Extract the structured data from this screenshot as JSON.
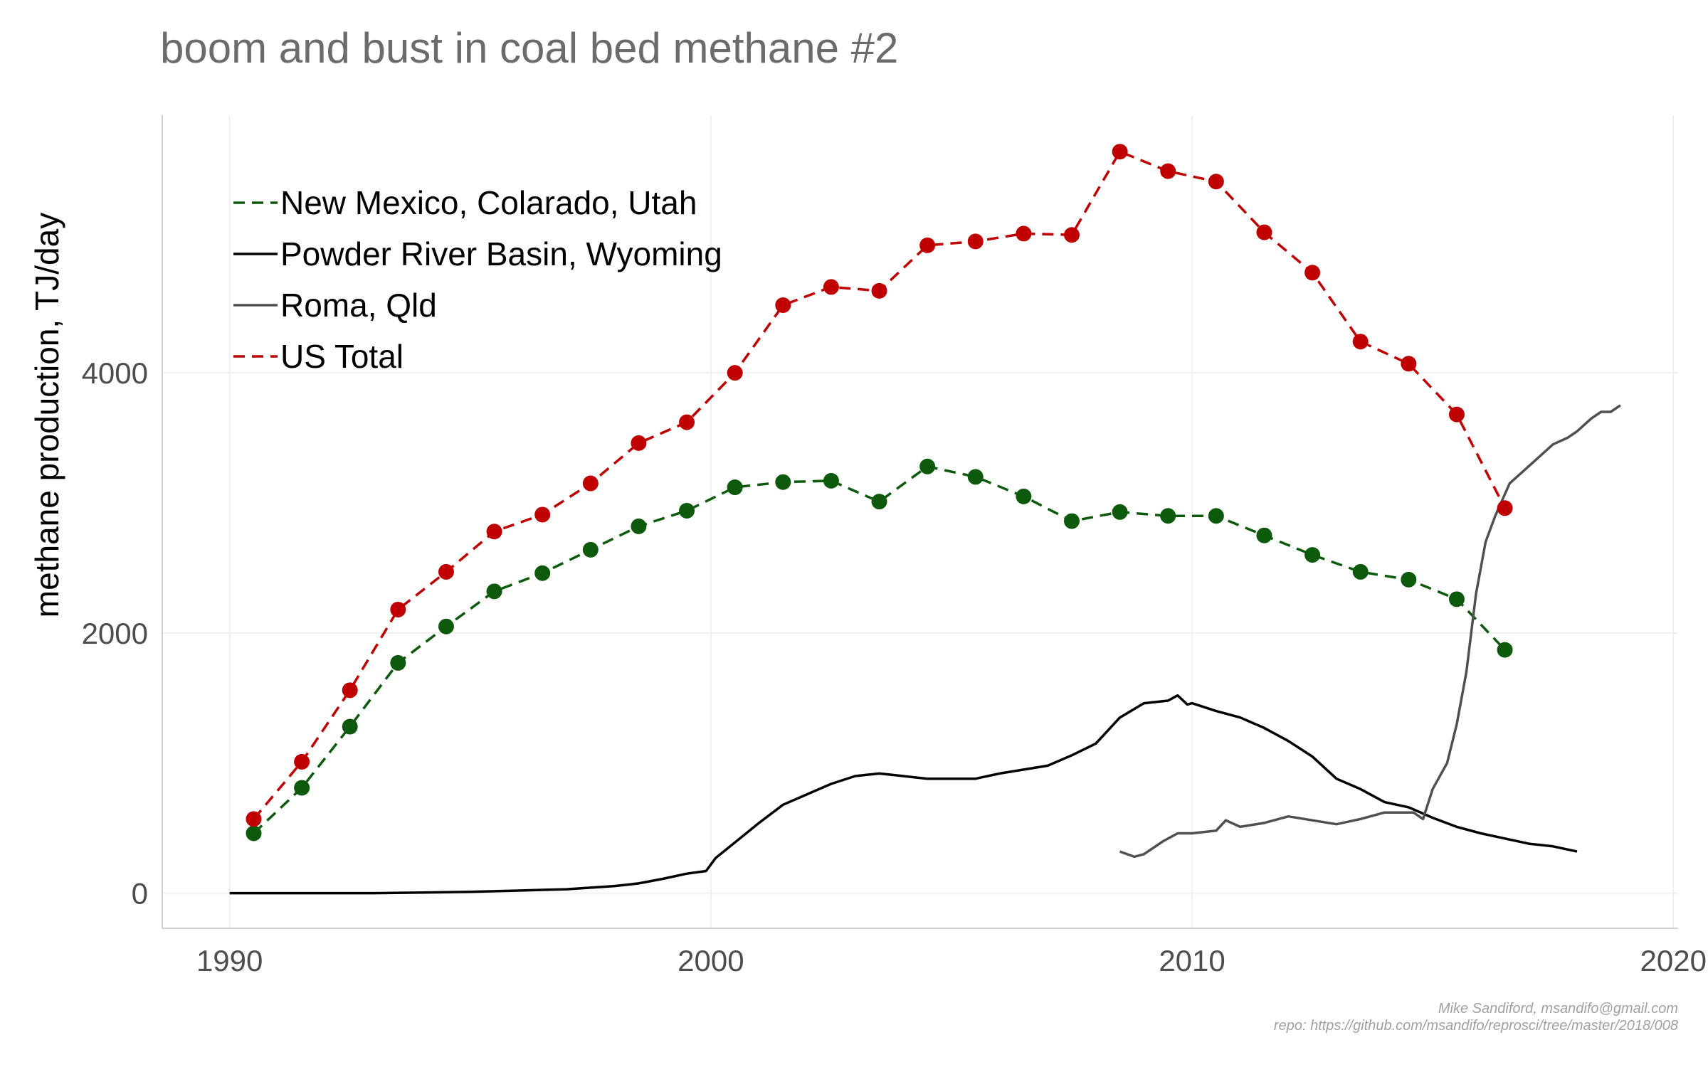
{
  "title": "boom and bust in coal bed methane #2",
  "caption": {
    "line1": "Mike Sandiford, msandifo@gmail.com",
    "line2": "repo: https://github.com/msandifo/reprosci/tree/master/2018/008"
  },
  "chart_data": {
    "type": "line",
    "title": "boom and bust in coal bed methane #2",
    "xlabel": "",
    "ylabel": "methane production, TJ/day",
    "xlim": [
      1988.6,
      2020.1
    ],
    "ylim": [
      -270,
      5980
    ],
    "x_ticks": [
      1990,
      2000,
      2010,
      2020
    ],
    "y_ticks": [
      0,
      2000,
      4000
    ],
    "grid": true,
    "legend_position": "top-left",
    "series": [
      {
        "name": "New Mexico, Colarado, Utah",
        "color": "#0d5a0d",
        "dash": "dashed",
        "markers": true,
        "x": [
          1990.5,
          1991.5,
          1992.5,
          1993.5,
          1994.5,
          1995.5,
          1996.5,
          1997.5,
          1998.5,
          1999.5,
          2000.5,
          2001.5,
          2002.5,
          2003.5,
          2004.5,
          2005.5,
          2006.5,
          2007.5,
          2008.5,
          2009.5,
          2010.5,
          2011.5,
          2012.5,
          2013.5,
          2014.5,
          2015.5,
          2016.5
        ],
        "y": [
          460,
          810,
          1280,
          1770,
          2050,
          2320,
          2460,
          2640,
          2820,
          2940,
          3120,
          3160,
          3170,
          3010,
          3280,
          3200,
          3050,
          2860,
          2930,
          2900,
          2900,
          2750,
          2600,
          2470,
          2410,
          2260,
          1870
        ]
      },
      {
        "name": "Powder River Basin, Wyoming",
        "color": "#000000",
        "dash": "solid",
        "markers": false,
        "x": [
          1990,
          1991,
          1992,
          1993,
          1994,
          1995,
          1996,
          1997,
          1998,
          1998.5,
          1999,
          1999.5,
          1999.9,
          2000.1,
          2000.5,
          2001,
          2001.5,
          2002,
          2002.5,
          2003,
          2003.5,
          2004,
          2004.5,
          2005,
          2005.5,
          2006,
          2006.5,
          2007,
          2007.5,
          2008,
          2008.5,
          2009,
          2009.5,
          2009.7,
          2009.9,
          2010,
          2010.5,
          2011,
          2011.5,
          2012,
          2012.5,
          2013,
          2013.5,
          2014,
          2014.5,
          2015,
          2015.5,
          2016,
          2016.5,
          2017,
          2017.5,
          2018
        ],
        "y": [
          0,
          0,
          0,
          0,
          5,
          10,
          20,
          30,
          55,
          75,
          110,
          150,
          170,
          270,
          390,
          540,
          680,
          760,
          840,
          900,
          920,
          900,
          880,
          880,
          880,
          920,
          950,
          980,
          1060,
          1150,
          1350,
          1460,
          1480,
          1520,
          1450,
          1460,
          1400,
          1350,
          1270,
          1170,
          1050,
          880,
          800,
          700,
          660,
          580,
          510,
          460,
          420,
          380,
          360,
          320
        ]
      },
      {
        "name": "Roma, Qld",
        "color": "#505050",
        "dash": "solid",
        "markers": false,
        "x": [
          2008.5,
          2008.8,
          2009,
          2009.4,
          2009.7,
          2010,
          2010.5,
          2010.7,
          2011,
          2011.5,
          2012,
          2012.5,
          2013,
          2013.5,
          2014,
          2014.4,
          2014.6,
          2014.8,
          2015,
          2015.3,
          2015.5,
          2015.7,
          2015.9,
          2016.1,
          2016.3,
          2016.6,
          2016.9,
          2017.2,
          2017.5,
          2017.8,
          2018,
          2018.3,
          2018.5,
          2018.7,
          2018.9
        ],
        "y": [
          320,
          280,
          300,
          400,
          460,
          460,
          480,
          560,
          510,
          540,
          590,
          560,
          530,
          570,
          620,
          620,
          620,
          570,
          800,
          1000,
          1300,
          1700,
          2300,
          2700,
          2900,
          3150,
          3250,
          3350,
          3450,
          3500,
          3550,
          3650,
          3700,
          3700,
          3750
        ]
      },
      {
        "name": "US Total",
        "color": "#c00000",
        "dash": "dashed",
        "markers": true,
        "x": [
          1990.5,
          1991.5,
          1992.5,
          1993.5,
          1994.5,
          1995.5,
          1996.5,
          1997.5,
          1998.5,
          1999.5,
          2000.5,
          2001.5,
          2002.5,
          2003.5,
          2004.5,
          2005.5,
          2006.5,
          2007.5,
          2008.5,
          2009.5,
          2010.5,
          2011.5,
          2012.5,
          2013.5,
          2014.5,
          2015.5,
          2016.5
        ],
        "y": [
          570,
          1010,
          1560,
          2180,
          2470,
          2780,
          2910,
          3150,
          3460,
          3620,
          4000,
          4520,
          4660,
          4630,
          4980,
          5010,
          5070,
          5060,
          5700,
          5550,
          5470,
          5080,
          4770,
          4240,
          4070,
          3680,
          2960
        ]
      }
    ]
  }
}
